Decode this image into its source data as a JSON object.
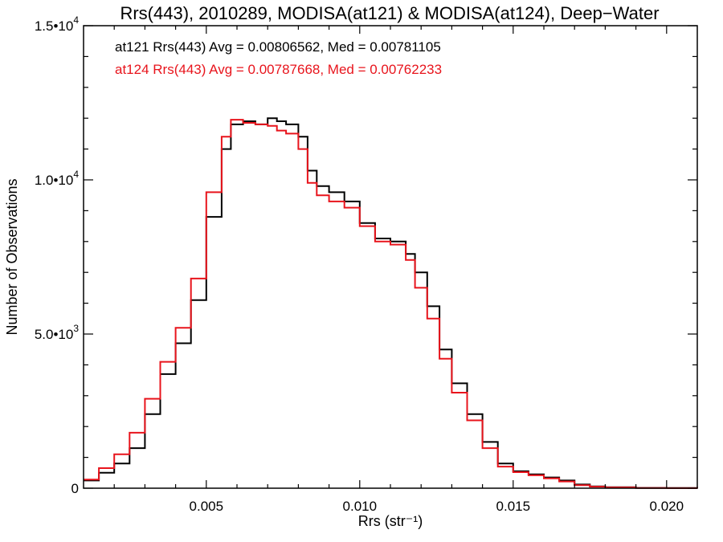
{
  "chart_data": {
    "type": "line",
    "title": "Rrs(443), 2010289, MODISA(at121) & MODISA(at124), Deep−Water",
    "xlabel": "Rrs (str⁻¹)",
    "ylabel": "Number of Observations",
    "xlim": [
      0.001,
      0.021
    ],
    "ylim": [
      0,
      15000
    ],
    "x_ticks": [
      {
        "value": 0.005,
        "label": "0.005"
      },
      {
        "value": 0.01,
        "label": "0.010"
      },
      {
        "value": 0.015,
        "label": "0.015"
      },
      {
        "value": 0.02,
        "label": "0.020"
      }
    ],
    "y_ticks": [
      {
        "value": 0,
        "mant": "0",
        "exp": ""
      },
      {
        "value": 5000,
        "mant": "5.0•10",
        "exp": "3"
      },
      {
        "value": 10000,
        "mant": "1.0•10",
        "exp": "4"
      },
      {
        "value": 15000,
        "mant": "1.5•10",
        "exp": "4"
      }
    ],
    "grid": false,
    "annotations": [
      {
        "text": "at121 Rrs(443) Avg = 0.00806562, Med = 0.00781105",
        "color": "#000000"
      },
      {
        "text": "at124 Rrs(443) Avg = 0.00787668, Med = 0.00762233",
        "color": "#e8141c"
      }
    ],
    "series": [
      {
        "color": "#000000",
        "x": [
          0.001,
          0.0015,
          0.002,
          0.0025,
          0.003,
          0.0035,
          0.004,
          0.0045,
          0.005,
          0.0055,
          0.0058,
          0.0062,
          0.0066,
          0.007,
          0.0073,
          0.0076,
          0.008,
          0.0083,
          0.0086,
          0.009,
          0.0095,
          0.01,
          0.0105,
          0.011,
          0.0115,
          0.0118,
          0.0122,
          0.0126,
          0.013,
          0.0135,
          0.014,
          0.0145,
          0.015,
          0.0155,
          0.016,
          0.0165,
          0.017,
          0.0175,
          0.018,
          0.019,
          0.02,
          0.021
        ],
        "y": [
          250,
          500,
          800,
          1300,
          2400,
          3700,
          4700,
          6100,
          8800,
          11000,
          11800,
          11900,
          11800,
          12000,
          11900,
          11800,
          11400,
          10300,
          9800,
          9600,
          9300,
          8600,
          8100,
          8000,
          7600,
          7000,
          5900,
          4500,
          3400,
          2400,
          1500,
          800,
          550,
          450,
          350,
          250,
          120,
          60,
          30,
          10,
          5,
          0
        ]
      },
      {
        "color": "#e8141c",
        "x": [
          0.001,
          0.0015,
          0.002,
          0.0025,
          0.003,
          0.0035,
          0.004,
          0.0045,
          0.005,
          0.0055,
          0.0058,
          0.0062,
          0.0066,
          0.007,
          0.0073,
          0.0076,
          0.008,
          0.0083,
          0.0086,
          0.009,
          0.0095,
          0.01,
          0.0105,
          0.011,
          0.0115,
          0.0118,
          0.0122,
          0.0126,
          0.013,
          0.0135,
          0.014,
          0.0145,
          0.015,
          0.0155,
          0.016,
          0.0165,
          0.017,
          0.0175,
          0.018,
          0.019,
          0.02,
          0.021
        ],
        "y": [
          280,
          650,
          1100,
          1800,
          2900,
          4100,
          5200,
          6800,
          9600,
          11400,
          11950,
          11850,
          11800,
          11750,
          11600,
          11500,
          11000,
          9900,
          9500,
          9300,
          9100,
          8500,
          8000,
          7900,
          7400,
          6500,
          5500,
          4200,
          3100,
          2200,
          1300,
          700,
          520,
          420,
          320,
          220,
          100,
          50,
          25,
          8,
          3,
          0
        ]
      }
    ]
  }
}
